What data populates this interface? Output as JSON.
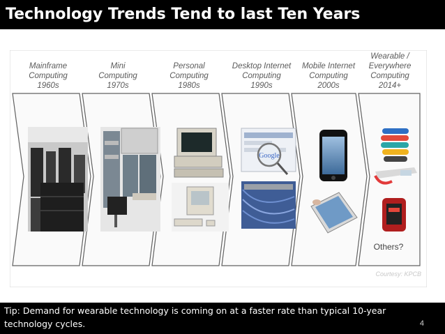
{
  "slide": {
    "title": "Technology Trends Tend to last Ten Years",
    "eras": [
      {
        "lines": [
          "Mainframe",
          "Computing",
          "1960s"
        ]
      },
      {
        "lines": [
          "Mini",
          "Computing",
          "1970s"
        ]
      },
      {
        "lines": [
          "Personal",
          "Computing",
          "1980s"
        ]
      },
      {
        "lines": [
          "Desktop Internet",
          "Computing",
          "1990s"
        ]
      },
      {
        "lines": [
          "Mobile Internet",
          "Computing",
          "2000s"
        ]
      },
      {
        "lines": [
          "Wearable /",
          "Everywhere",
          "Computing",
          "2014+"
        ]
      }
    ],
    "others_label": "Others?",
    "courtesy": "Courtesy:  KPCB",
    "google_text": "Google",
    "tip": "Tip:  Demand for wearable technology is coming on  at a faster rate than typical 10-year technology cycles.",
    "page_number": "4"
  }
}
